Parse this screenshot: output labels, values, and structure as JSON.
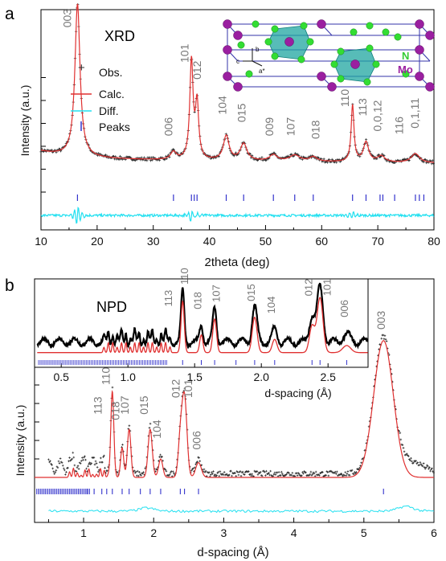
{
  "chart_data": [
    {
      "panel_letter": "a",
      "type": "line",
      "title": "XRD",
      "xlabel": "2theta (deg)",
      "ylabel": "Intensity (a.u.)",
      "xlim": [
        10,
        80
      ],
      "xticks": [
        10,
        20,
        30,
        40,
        50,
        60,
        70,
        80
      ],
      "legend": {
        "placement": "top-left",
        "entries": [
          "Obs.",
          "Calc.",
          "Diff.",
          "Peaks"
        ]
      },
      "colors": {
        "obs": "#000000",
        "calc": "#e03030",
        "diff": "#22e0f0",
        "peaks": "#3333cc"
      },
      "peaks": [
        {
          "x": 16.5,
          "h": 1.0,
          "w": 0.55
        },
        {
          "x": 33.6,
          "h": 0.05,
          "w": 0.6
        },
        {
          "x": 36.8,
          "h": 0.64,
          "w": 0.35
        },
        {
          "x": 37.8,
          "h": 0.36,
          "w": 0.35
        },
        {
          "x": 43.0,
          "h": 0.16,
          "w": 0.6
        },
        {
          "x": 46.1,
          "h": 0.11,
          "w": 0.7
        },
        {
          "x": 51.4,
          "h": 0.04,
          "w": 0.8
        },
        {
          "x": 55.2,
          "h": 0.04,
          "w": 1.1
        },
        {
          "x": 58.5,
          "h": 0.03,
          "w": 0.8
        },
        {
          "x": 65.5,
          "h": 0.37,
          "w": 0.3
        },
        {
          "x": 67.9,
          "h": 0.13,
          "w": 0.55
        },
        {
          "x": 70.6,
          "h": 0.04,
          "w": 0.8
        },
        {
          "x": 76.7,
          "h": 0.06,
          "w": 0.9
        }
      ],
      "peak_ticks": [
        16.5,
        33.6,
        36.8,
        37.3,
        37.8,
        43.0,
        46.1,
        51.4,
        55.2,
        58.5,
        65.5,
        67.9,
        70.4,
        70.9,
        73.0,
        76.7,
        77.4,
        78.2
      ],
      "labels": [
        {
          "text": "003",
          "x": 15.4,
          "y": 0.93
        },
        {
          "text": "006",
          "x": 33.4,
          "y": 0.22
        },
        {
          "text": "101",
          "x": 36.3,
          "y": 0.7
        },
        {
          "text": "012",
          "x": 38.5,
          "y": 0.59
        },
        {
          "text": "104",
          "x": 43.0,
          "y": 0.36
        },
        {
          "text": "015",
          "x": 46.4,
          "y": 0.31
        },
        {
          "text": "009",
          "x": 51.4,
          "y": 0.22
        },
        {
          "text": "107",
          "x": 55.2,
          "y": 0.22
        },
        {
          "text": "018",
          "x": 59.6,
          "y": 0.2
        },
        {
          "text": "110",
          "x": 64.8,
          "y": 0.41
        },
        {
          "text": "113",
          "x": 68.0,
          "y": 0.35
        },
        {
          "text": "0,0,12",
          "x": 70.6,
          "y": 0.25
        },
        {
          "text": "116",
          "x": 74.5,
          "y": 0.23
        },
        {
          "text": "0,1,11",
          "x": 77.3,
          "y": 0.27
        }
      ]
    },
    {
      "panel_letter": "b",
      "type": "line",
      "title": "NPD",
      "xlabel": "d-spacing (Å)",
      "ylabel": "Intensity (a.u.)",
      "xlim": [
        0.3,
        6
      ],
      "xticks": [
        1,
        2,
        3,
        4,
        5,
        6
      ],
      "peaks": [
        {
          "x": 1.41,
          "h": 0.44,
          "w": 0.022
        },
        {
          "x": 1.55,
          "h": 0.16,
          "w": 0.022
        },
        {
          "x": 1.65,
          "h": 0.26,
          "w": 0.025
        },
        {
          "x": 1.95,
          "h": 0.26,
          "w": 0.03
        },
        {
          "x": 2.1,
          "h": 0.1,
          "w": 0.03
        },
        {
          "x": 2.38,
          "h": 0.2,
          "w": 0.03
        },
        {
          "x": 2.44,
          "h": 0.43,
          "w": 0.035
        },
        {
          "x": 2.64,
          "h": 0.08,
          "w": 0.04
        },
        {
          "x": 5.28,
          "h": 0.74,
          "w": 0.14
        }
      ],
      "peak_ticks": [
        1.05,
        1.15,
        1.26,
        1.33,
        1.41,
        1.55,
        1.65,
        1.81,
        1.95,
        2.1,
        2.38,
        2.44,
        2.64,
        5.28
      ],
      "labels": [
        {
          "text": "113",
          "x": 1.26,
          "y": 0.34
        },
        {
          "text": "110",
          "x": 1.37,
          "y": 0.5
        },
        {
          "text": "018",
          "x": 1.51,
          "y": 0.31
        },
        {
          "text": "107",
          "x": 1.64,
          "y": 0.34
        },
        {
          "text": "015",
          "x": 1.92,
          "y": 0.34
        },
        {
          "text": "104",
          "x": 2.1,
          "y": 0.21
        },
        {
          "text": "012",
          "x": 2.37,
          "y": 0.43
        },
        {
          "text": "101",
          "x": 2.55,
          "y": 0.43
        },
        {
          "text": "006",
          "x": 2.67,
          "y": 0.15
        },
        {
          "text": "003",
          "x": 5.3,
          "y": 0.8
        }
      ],
      "inset": {
        "xlabel": "d-spacing (Å)",
        "xlim": [
          0.3,
          2.8
        ],
        "xticks": [
          0.5,
          1.0,
          1.5,
          2.0,
          2.5
        ],
        "labels": [
          {
            "text": "113",
            "x": 1.33,
            "y": 0.55
          },
          {
            "text": "110",
            "x": 1.45,
            "y": 0.8
          },
          {
            "text": "018",
            "x": 1.55,
            "y": 0.52
          },
          {
            "text": "107",
            "x": 1.69,
            "y": 0.6
          },
          {
            "text": "015",
            "x": 1.95,
            "y": 0.61
          },
          {
            "text": "104",
            "x": 2.1,
            "y": 0.47
          },
          {
            "text": "012",
            "x": 2.38,
            "y": 0.67
          },
          {
            "text": "101",
            "x": 2.52,
            "y": 0.67
          },
          {
            "text": "006",
            "x": 2.65,
            "y": 0.43
          }
        ]
      }
    }
  ],
  "structure_inset": {
    "axis_labels": [
      "c",
      "b",
      "a*"
    ],
    "atom_labels": [
      "N",
      "Mo"
    ],
    "colors": {
      "mo": "#9a1fa0",
      "n": "#33dd33",
      "polyhedra": "#1fa5a0",
      "cell": "#3333aa"
    }
  }
}
